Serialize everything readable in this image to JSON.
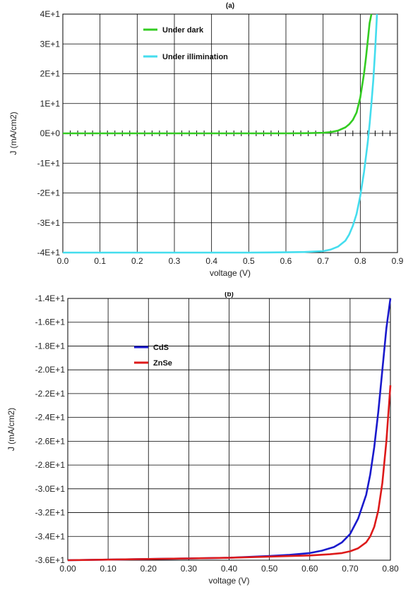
{
  "chart_data": [
    {
      "type": "line",
      "title": "(a)",
      "xlabel": "voltage (V)",
      "ylabel": "J (mA/cm2)",
      "xlim": [
        0,
        0.9
      ],
      "ylim": [
        -40,
        40
      ],
      "x_ticks": [
        "0.0",
        "0.1",
        "0.2",
        "0.3",
        "0.4",
        "0.5",
        "0.6",
        "0.7",
        "0.8",
        "0.9"
      ],
      "y_ticks": [
        "-4E+1",
        "-3E+1",
        "-2E+1",
        "-1E+1",
        "0E+0",
        "1E+1",
        "2E+1",
        "3E+1",
        "4E+1"
      ],
      "grid": true,
      "legend_position": "top-left",
      "series": [
        {
          "name": "Under dark",
          "color": "#33cc22",
          "x": [
            0,
            0.1,
            0.2,
            0.3,
            0.4,
            0.5,
            0.6,
            0.65,
            0.7,
            0.72,
            0.74,
            0.76,
            0.77,
            0.78,
            0.79,
            0.8,
            0.81,
            0.815,
            0.82,
            0.825,
            0.83
          ],
          "y": [
            0,
            0,
            0,
            0,
            0,
            0,
            0,
            0.05,
            0.2,
            0.4,
            0.9,
            2,
            3,
            4.5,
            7,
            12,
            20,
            25,
            31,
            37,
            40
          ]
        },
        {
          "name": "Under illimination",
          "color": "#44ddee",
          "x": [
            0,
            0.1,
            0.2,
            0.3,
            0.4,
            0.5,
            0.6,
            0.65,
            0.7,
            0.72,
            0.74,
            0.76,
            0.77,
            0.78,
            0.79,
            0.8,
            0.81,
            0.82,
            0.825,
            0.83,
            0.835,
            0.84,
            0.845
          ],
          "y": [
            -40,
            -40,
            -40,
            -40,
            -40,
            -40,
            -39.9,
            -39.8,
            -39.5,
            -39,
            -38,
            -36,
            -34,
            -31,
            -27,
            -21,
            -13,
            -3,
            3,
            10,
            18,
            28,
            40
          ]
        }
      ]
    },
    {
      "type": "line",
      "title": "(b)",
      "xlabel": "voltage (V)",
      "ylabel": "J (mA/cm2)",
      "xlim": [
        0,
        0.8
      ],
      "ylim": [
        -36,
        -14
      ],
      "x_ticks": [
        "0.00",
        "0.10",
        "0.20",
        "0.30",
        "0.40",
        "0.50",
        "0.60",
        "0.70",
        "0.80"
      ],
      "y_ticks": [
        "-3.6E+1",
        "-3.4E+1",
        "-3.2E+1",
        "-3.0E+1",
        "-2.8E+1",
        "-2.6E+1",
        "-2.4E+1",
        "-2.2E+1",
        "-2.0E+1",
        "-1.8E+1",
        "-1.6E+1",
        "-1.4E+1"
      ],
      "grid": true,
      "legend_position": "top-left",
      "series": [
        {
          "name": "CdS",
          "color": "#1a1acc",
          "x": [
            0,
            0.1,
            0.2,
            0.3,
            0.4,
            0.5,
            0.55,
            0.6,
            0.63,
            0.66,
            0.68,
            0.7,
            0.72,
            0.74,
            0.75,
            0.76,
            0.77,
            0.78,
            0.79,
            0.8
          ],
          "y": [
            -36,
            -35.95,
            -35.9,
            -35.85,
            -35.8,
            -35.65,
            -35.55,
            -35.4,
            -35.2,
            -34.9,
            -34.5,
            -33.8,
            -32.5,
            -30.5,
            -28.8,
            -26.5,
            -23.5,
            -20,
            -16.5,
            -14
          ]
        },
        {
          "name": "ZnSe",
          "color": "#dd1a1a",
          "x": [
            0,
            0.1,
            0.2,
            0.3,
            0.4,
            0.5,
            0.55,
            0.6,
            0.65,
            0.68,
            0.7,
            0.72,
            0.74,
            0.75,
            0.76,
            0.77,
            0.78,
            0.79,
            0.8
          ],
          "y": [
            -36,
            -35.95,
            -35.9,
            -35.85,
            -35.8,
            -35.7,
            -35.65,
            -35.6,
            -35.5,
            -35.4,
            -35.25,
            -35,
            -34.5,
            -34,
            -33.2,
            -31.8,
            -29.5,
            -26,
            -21.3
          ]
        }
      ]
    }
  ]
}
